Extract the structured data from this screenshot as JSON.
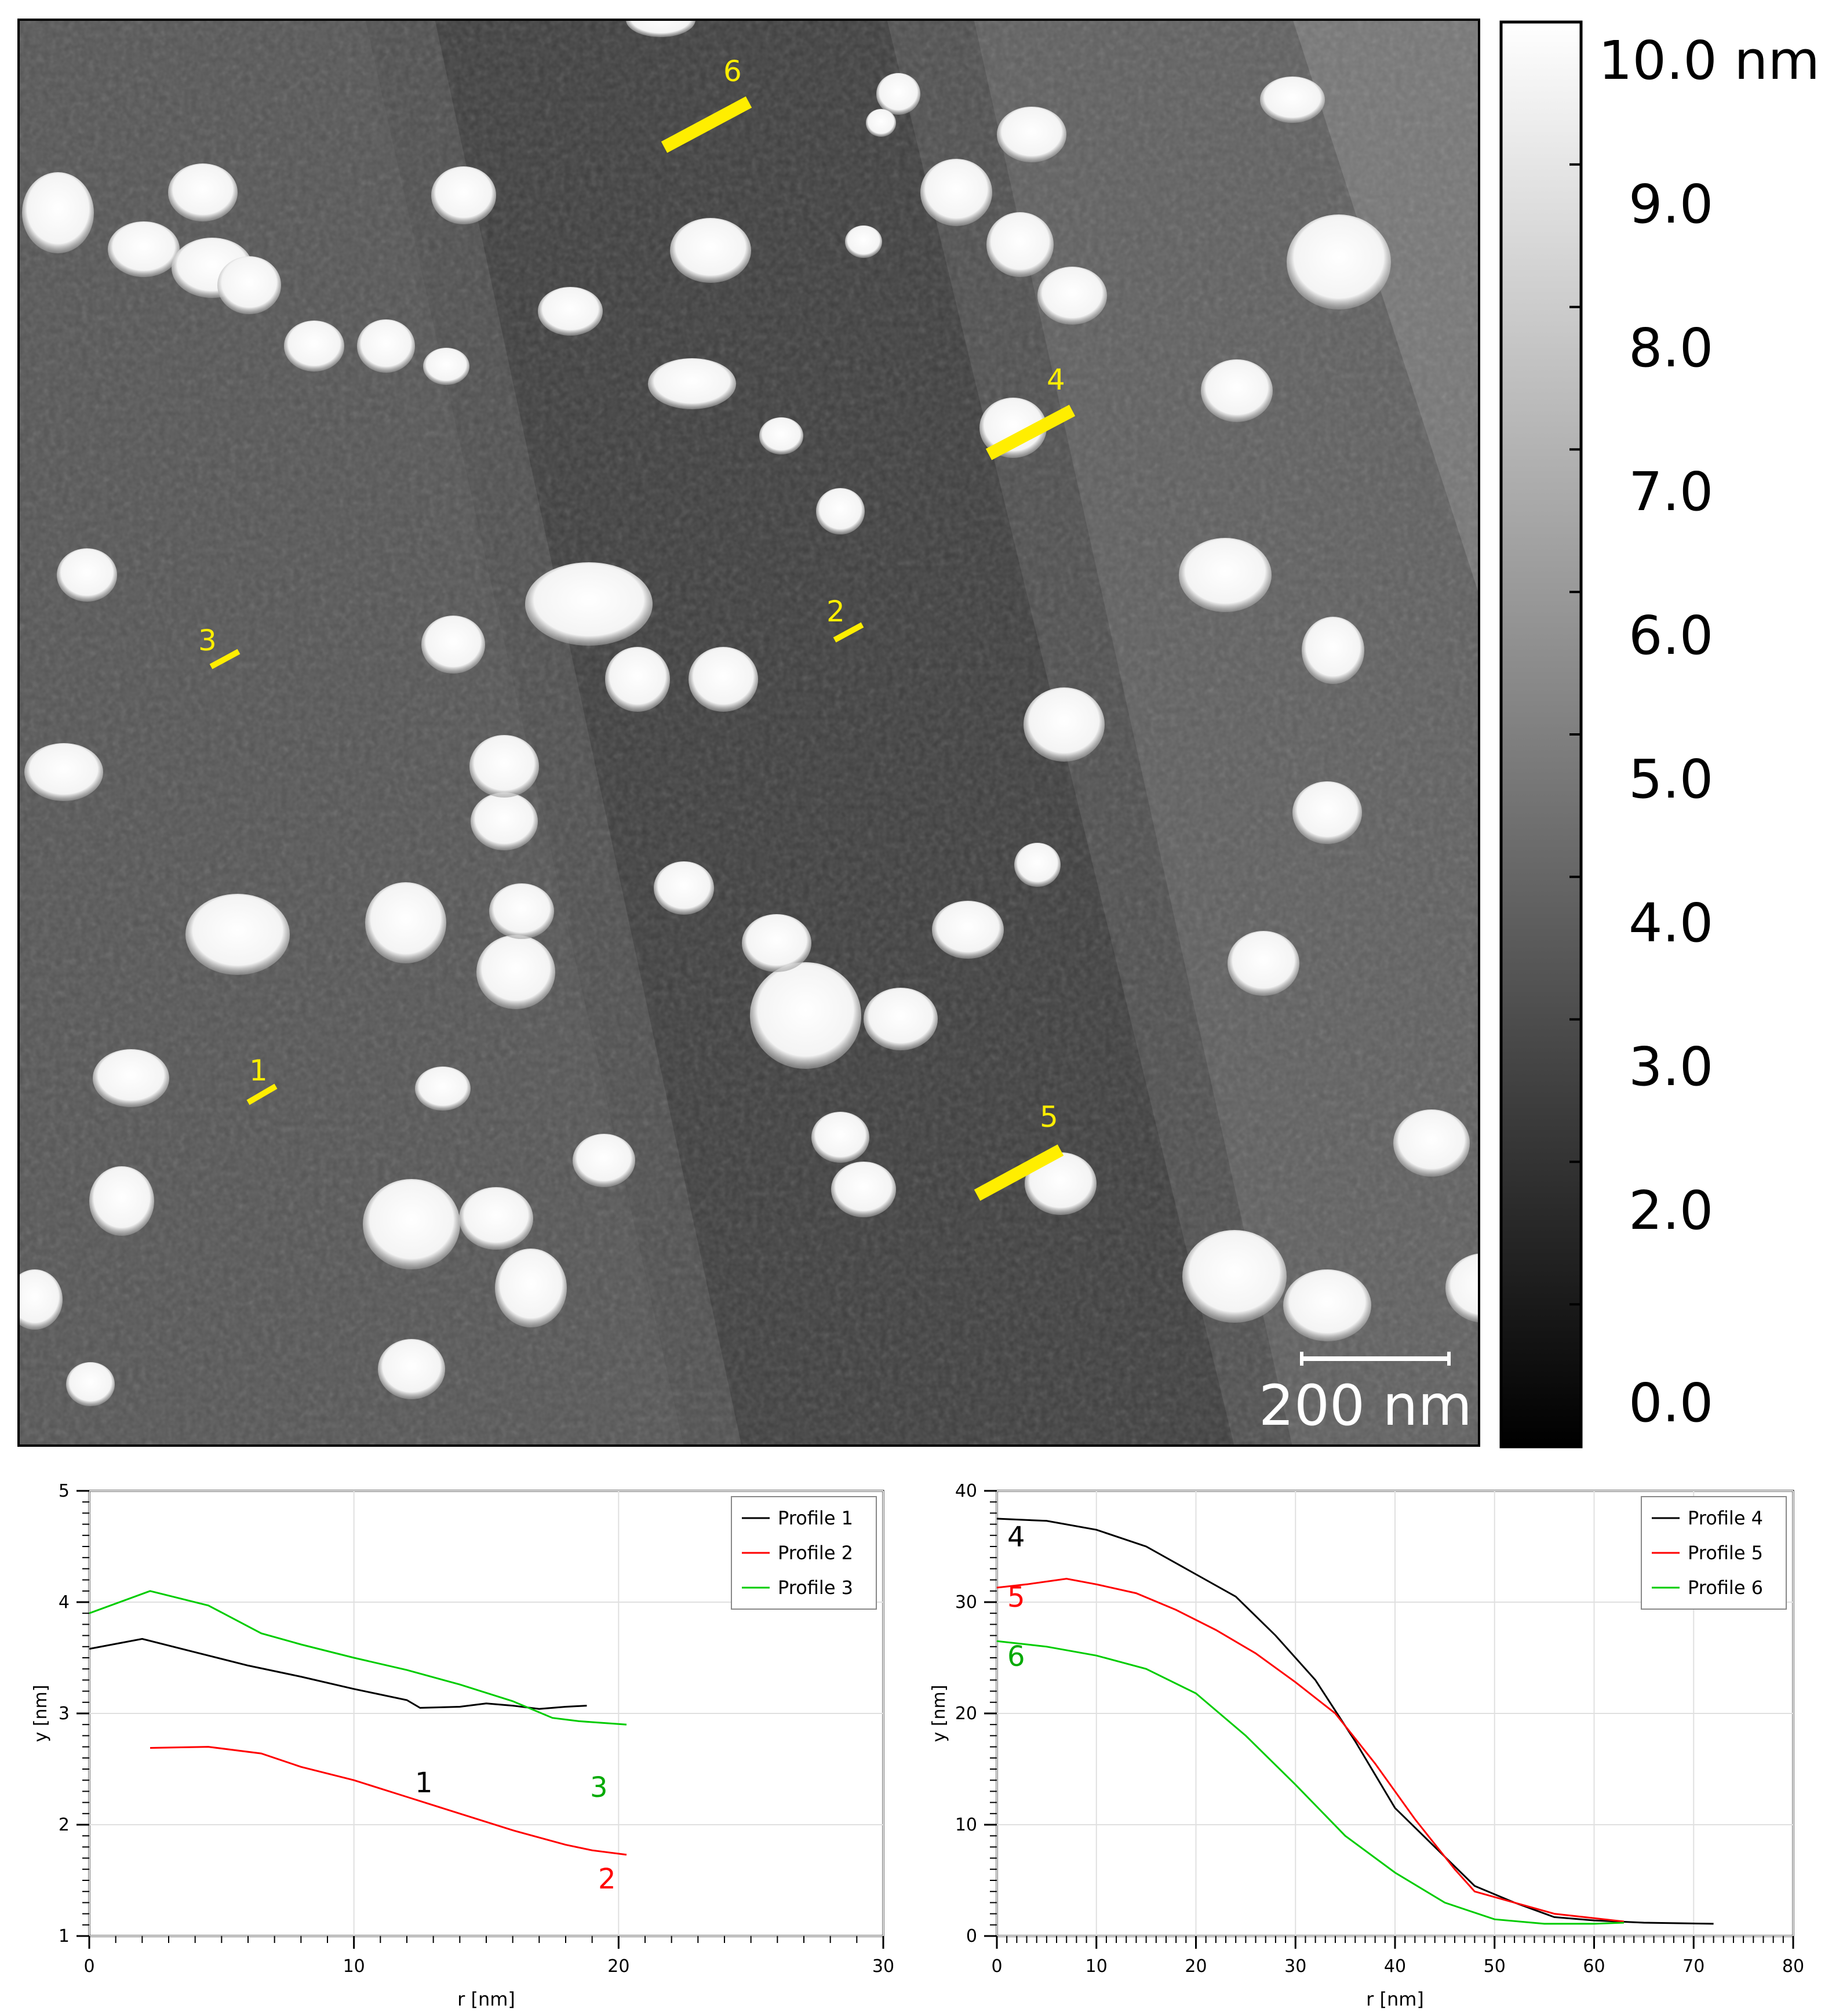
{
  "afm": {
    "scale_bar_label": "200 nm",
    "line_labels": [
      "1",
      "2",
      "3",
      "4",
      "5",
      "6"
    ],
    "marker_color": "#ffee00"
  },
  "colorbar": {
    "max_label": "10.0 nm",
    "tick_labels": [
      "9.0",
      "8.0",
      "7.0",
      "6.0",
      "5.0",
      "4.0",
      "3.0",
      "2.0",
      "0.0"
    ],
    "range": [
      0,
      10
    ]
  },
  "chart_data": [
    {
      "type": "line",
      "xlabel": "r [nm]",
      "ylabel": "y [nm]",
      "xlim": [
        0,
        30
      ],
      "ylim": [
        1,
        5
      ],
      "x_ticks": [
        "0",
        "10",
        "20",
        "30"
      ],
      "y_ticks": [
        "1",
        "2",
        "3",
        "4",
        "5"
      ],
      "grid": true,
      "legend": "top-right",
      "series": [
        {
          "name": "Profile 1",
          "label": "1",
          "color": "#000000",
          "x": [
            0,
            2,
            4,
            6,
            8,
            10,
            12,
            12.5,
            14,
            15,
            16,
            17,
            18,
            18.8
          ],
          "y": [
            3.58,
            3.67,
            3.55,
            3.43,
            3.33,
            3.22,
            3.12,
            3.05,
            3.06,
            3.09,
            3.07,
            3.04,
            3.06,
            3.07
          ]
        },
        {
          "name": "Profile 2",
          "label": "2",
          "color": "#ff0000",
          "x": [
            2.3,
            4.5,
            6.5,
            8,
            10,
            12,
            14,
            16,
            18,
            19,
            20.3
          ],
          "y": [
            2.69,
            2.7,
            2.64,
            2.52,
            2.4,
            2.25,
            2.1,
            1.95,
            1.82,
            1.77,
            1.73
          ]
        },
        {
          "name": "Profile 3",
          "label": "3",
          "color": "#00cc00",
          "x": [
            0,
            2.3,
            4.5,
            6.5,
            8,
            10,
            12,
            14,
            16,
            17.5,
            18.5,
            20.3
          ],
          "y": [
            3.9,
            4.1,
            3.97,
            3.72,
            3.62,
            3.5,
            3.39,
            3.26,
            3.11,
            2.96,
            2.93,
            2.9
          ]
        }
      ]
    },
    {
      "type": "line",
      "xlabel": "r [nm]",
      "ylabel": "y [nm]",
      "xlim": [
        0,
        80
      ],
      "ylim": [
        0,
        40
      ],
      "x_ticks": [
        "0",
        "10",
        "20",
        "30",
        "40",
        "50",
        "60",
        "70",
        "80"
      ],
      "y_ticks": [
        "0",
        "10",
        "20",
        "30",
        "40"
      ],
      "grid": true,
      "legend": "top-right",
      "series": [
        {
          "name": "Profile 4",
          "label": "4",
          "color": "#000000",
          "x": [
            0,
            5,
            10,
            15,
            20,
            24,
            28,
            32,
            36,
            40,
            44,
            48,
            52,
            56,
            60,
            65,
            72
          ],
          "y": [
            37.5,
            37.3,
            36.5,
            35,
            32.5,
            30.5,
            27,
            23,
            17.5,
            11.5,
            8,
            4.5,
            3,
            1.7,
            1.4,
            1.2,
            1.1
          ]
        },
        {
          "name": "Profile 5",
          "label": "5",
          "color": "#ff0000",
          "x": [
            0,
            3,
            7,
            10,
            14,
            18,
            22,
            26,
            30,
            34,
            38,
            42,
            46,
            48,
            52,
            56,
            60,
            63
          ],
          "y": [
            31.3,
            31.6,
            32.1,
            31.6,
            30.8,
            29.3,
            27.5,
            25.4,
            22.8,
            20,
            15.5,
            10.5,
            6,
            4,
            3,
            2,
            1.6,
            1.3
          ]
        },
        {
          "name": "Profile 6",
          "label": "6",
          "color": "#00cc00",
          "x": [
            0,
            5,
            10,
            15,
            20,
            25,
            30,
            35,
            40,
            45,
            50,
            55,
            60,
            63
          ],
          "y": [
            26.5,
            26,
            25.2,
            24,
            21.8,
            18,
            13.6,
            9,
            5.7,
            3,
            1.5,
            1.1,
            1.1,
            1.2
          ]
        }
      ]
    }
  ]
}
